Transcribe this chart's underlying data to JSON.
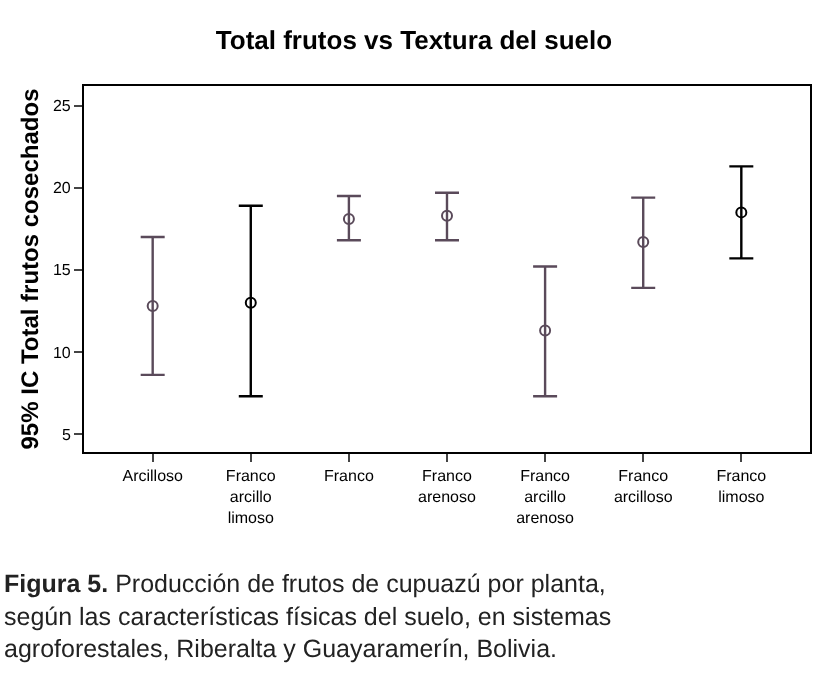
{
  "chart_data": {
    "type": "scatter",
    "title": "Total frutos vs Textura del suelo",
    "ylabel": "95% IC Total frutos cosechados",
    "categories": [
      "Arcilloso",
      "Franco\narcillo\nlimoso",
      "Franco",
      "Franco\narenoso",
      "Franco\narcillo\narenoso",
      "Franco\narcilloso",
      "Franco\nlimoso"
    ],
    "values": [
      12.8,
      13.0,
      18.1,
      18.3,
      11.3,
      16.7,
      18.5
    ],
    "errors": [
      [
        8.6,
        17.0
      ],
      [
        7.3,
        18.9
      ],
      [
        16.8,
        19.5
      ],
      [
        16.8,
        19.7
      ],
      [
        7.3,
        15.2
      ],
      [
        13.9,
        19.4
      ],
      [
        15.7,
        21.3
      ]
    ],
    "colors": [
      "#5a4a5a",
      "#000000",
      "#5a4a5a",
      "#5a4a5a",
      "#5a4a5a",
      "#5a4a5a",
      "#000000"
    ],
    "marker": "circle",
    "ylim": [
      3.9,
      26.2
    ],
    "yticks": [
      5,
      10,
      15,
      20,
      25
    ],
    "annotations": [
      "Figura 5. Producción de frutos de cupuazú por planta, según las características físicas del suelo, en sistemas agroforestales, Riberalta y Guayaramerín, Bolivia."
    ]
  }
}
